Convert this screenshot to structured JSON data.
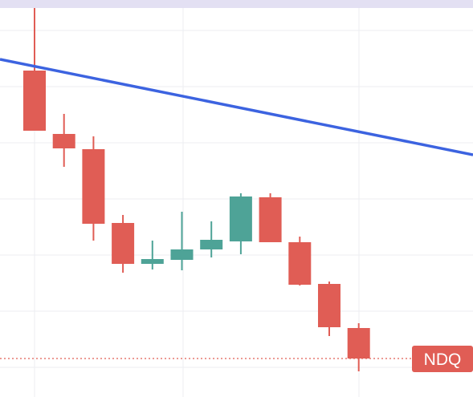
{
  "chart_data": {
    "type": "candlestick",
    "categories": [
      null,
      null,
      null,
      null,
      null,
      null,
      null,
      null,
      null,
      null,
      null,
      null
    ],
    "open": [
      407,
      328,
      309,
      217,
      166,
      171,
      184,
      194,
      249,
      193,
      141,
      86
    ],
    "high": [
      485,
      353,
      325,
      227,
      195,
      231,
      219,
      254,
      254,
      200,
      144,
      92
    ],
    "low": [
      332,
      287,
      195,
      155,
      159,
      158,
      174,
      178,
      193,
      139,
      76,
      32
    ],
    "close": [
      332,
      310,
      216,
      166,
      172,
      184,
      196,
      250,
      193,
      140,
      87,
      48
    ],
    "up_color": "#4ea397",
    "down_color": "#e05d55",
    "ylim": [
      0,
      495
    ],
    "yticks": [
      37,
      107,
      177,
      247,
      317,
      387,
      457
    ],
    "grid": true,
    "trendline": {
      "start": 421,
      "end": 302,
      "color": "#3c63e0"
    },
    "last_price": {
      "value": 48,
      "label": "NDQ",
      "color": "#e05d55"
    }
  }
}
